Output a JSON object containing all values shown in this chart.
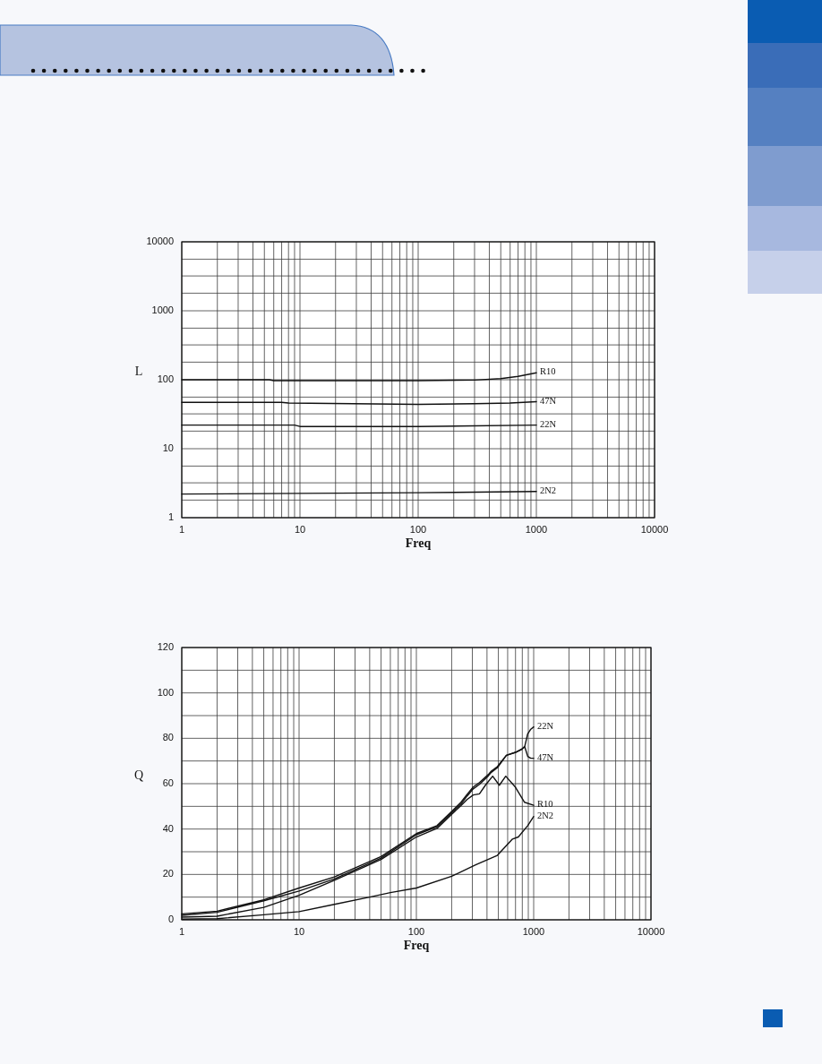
{
  "chart_data": [
    {
      "type": "line",
      "xlabel": "Freq",
      "ylabel": "L",
      "log": "xy",
      "xlim": [
        1,
        10000
      ],
      "ylim": [
        1,
        10000
      ],
      "xticks": [
        1,
        {
          "value": 2,
          "label": null
        },
        {
          "value": 3,
          "label": null
        },
        {
          "value": 4,
          "label": null
        },
        {
          "value": 5,
          "label": null
        },
        {
          "value": 6,
          "label": null
        },
        {
          "value": 7,
          "label": null
        },
        {
          "value": 8,
          "label": null
        },
        {
          "value": 9,
          "label": null
        },
        10,
        {
          "value": 20,
          "label": null
        },
        {
          "value": 30,
          "label": null
        },
        {
          "value": 40,
          "label": null
        },
        {
          "value": 50,
          "label": null
        },
        {
          "value": 60,
          "label": null
        },
        {
          "value": 70,
          "label": null
        },
        {
          "value": 80,
          "label": null
        },
        {
          "value": 90,
          "label": null
        },
        100,
        {
          "value": 200,
          "label": null
        },
        {
          "value": 300,
          "label": null
        },
        {
          "value": 400,
          "label": null
        },
        {
          "value": 500,
          "label": null
        },
        {
          "value": 600,
          "label": null
        },
        {
          "value": 700,
          "label": null
        },
        {
          "value": 800,
          "label": null
        },
        {
          "value": 900,
          "label": null
        },
        1000,
        {
          "value": 2000,
          "label": null
        },
        {
          "value": 3000,
          "label": null
        },
        {
          "value": 4000,
          "label": null
        },
        {
          "value": 5000,
          "label": null
        },
        {
          "value": 6000,
          "label": null
        },
        {
          "value": 7000,
          "label": null
        },
        {
          "value": 8000,
          "label": null
        },
        {
          "value": 9000,
          "label": null
        },
        10000
      ],
      "yticks": [
        1,
        {
          "value": 1.8,
          "label": null
        },
        {
          "value": 3.2,
          "label": null
        },
        {
          "value": 5.6,
          "label": null
        },
        10,
        {
          "value": 18,
          "label": null
        },
        {
          "value": 32,
          "label": null
        },
        {
          "value": 56,
          "label": null
        },
        100,
        {
          "value": 180,
          "label": null
        },
        {
          "value": 320,
          "label": null
        },
        {
          "value": 560,
          "label": null
        },
        1000,
        {
          "value": 1800,
          "label": null
        },
        {
          "value": 3200,
          "label": null
        },
        {
          "value": 5600,
          "label": null
        },
        10000
      ],
      "grid": true,
      "series": [
        {
          "name": "R10",
          "color": "#111111",
          "x": [
            1,
            5.5,
            6,
            100,
            300,
            500,
            700,
            1000
          ],
          "values": [
            100,
            100,
            97,
            97,
            99,
            104,
            112,
            126
          ]
        },
        {
          "name": "47N",
          "color": "#111111",
          "x": [
            1,
            7,
            8,
            100,
            300,
            600,
            1000
          ],
          "values": [
            47,
            47,
            46,
            44,
            45,
            46,
            48
          ]
        },
        {
          "name": "22N",
          "color": "#111111",
          "x": [
            1,
            9,
            10,
            100,
            1000
          ],
          "values": [
            22,
            22,
            21,
            21,
            22
          ]
        },
        {
          "name": "2N2",
          "color": "#111111",
          "x": [
            1,
            10,
            100,
            1000
          ],
          "values": [
            2.2,
            2.25,
            2.3,
            2.4
          ]
        }
      ]
    },
    {
      "type": "line",
      "xlabel": "Freq",
      "ylabel": "Q",
      "log": "x",
      "xlim": [
        1,
        10000
      ],
      "ylim": [
        0,
        120
      ],
      "xticks": [
        1,
        {
          "value": 2,
          "label": null
        },
        {
          "value": 3,
          "label": null
        },
        {
          "value": 4,
          "label": null
        },
        {
          "value": 5,
          "label": null
        },
        {
          "value": 6,
          "label": null
        },
        {
          "value": 7,
          "label": null
        },
        {
          "value": 8,
          "label": null
        },
        {
          "value": 9,
          "label": null
        },
        10,
        {
          "value": 20,
          "label": null
        },
        {
          "value": 30,
          "label": null
        },
        {
          "value": 40,
          "label": null
        },
        {
          "value": 50,
          "label": null
        },
        {
          "value": 60,
          "label": null
        },
        {
          "value": 70,
          "label": null
        },
        {
          "value": 80,
          "label": null
        },
        {
          "value": 90,
          "label": null
        },
        100,
        {
          "value": 200,
          "label": null
        },
        {
          "value": 300,
          "label": null
        },
        {
          "value": 400,
          "label": null
        },
        {
          "value": 500,
          "label": null
        },
        {
          "value": 600,
          "label": null
        },
        {
          "value": 700,
          "label": null
        },
        {
          "value": 800,
          "label": null
        },
        {
          "value": 900,
          "label": null
        },
        1000,
        {
          "value": 2000,
          "label": null
        },
        {
          "value": 3000,
          "label": null
        },
        {
          "value": 4000,
          "label": null
        },
        {
          "value": 5000,
          "label": null
        },
        {
          "value": 6000,
          "label": null
        },
        {
          "value": 7000,
          "label": null
        },
        {
          "value": 8000,
          "label": null
        },
        {
          "value": 9000,
          "label": null
        },
        10000
      ],
      "yticks": [
        0,
        {
          "value": 10,
          "label": null
        },
        20,
        {
          "value": 30,
          "label": null
        },
        40,
        {
          "value": 50,
          "label": null
        },
        60,
        {
          "value": 70,
          "label": null
        },
        80,
        {
          "value": 90,
          "label": null
        },
        100,
        {
          "value": 110,
          "label": null
        },
        120
      ],
      "grid": true,
      "series": [
        {
          "name": "22N",
          "color": "#111111",
          "x": [
            1,
            2,
            5,
            10,
            20,
            50,
            100,
            150,
            200,
            240,
            270,
            305,
            345,
            410,
            435,
            490,
            585,
            700,
            790,
            840,
            890,
            945,
            1000
          ],
          "values": [
            2.6,
            3.8,
            8.8,
            14,
            18.9,
            27.9,
            38,
            41.5,
            47.8,
            51.8,
            55.2,
            58.5,
            60.5,
            64,
            65.5,
            67.5,
            72.5,
            73.8,
            75.2,
            76.5,
            82,
            84,
            85
          ]
        },
        {
          "name": "47N",
          "color": "#111111",
          "x": [
            1,
            2,
            5,
            10,
            20,
            50,
            100,
            150,
            200,
            240,
            270,
            305,
            345,
            410,
            435,
            490,
            585,
            700,
            790,
            840,
            890,
            945,
            1000
          ],
          "values": [
            2,
            3.3,
            8.4,
            12.7,
            18,
            27.2,
            37.5,
            41,
            47.2,
            51,
            54.5,
            57.7,
            59.7,
            63.4,
            65,
            67,
            72.5,
            73.8,
            75.1,
            76.2,
            72,
            71.2,
            71.2
          ]
        },
        {
          "name": "R10",
          "color": "#111111",
          "x": [
            1,
            2,
            5,
            10,
            20,
            50,
            100,
            150,
            200,
            240,
            270,
            305,
            345,
            390,
            447,
            510,
            578,
            700,
            836,
            1000
          ],
          "values": [
            1.2,
            1.6,
            5.5,
            10.8,
            17.4,
            26.6,
            36.5,
            40.3,
            46.5,
            50.3,
            53,
            55,
            55.5,
            59.5,
            63.3,
            59.3,
            63.3,
            58.4,
            51.8,
            50.5
          ]
        },
        {
          "name": "2N2",
          "color": "#111111",
          "x": [
            1,
            2,
            5,
            10,
            20,
            40,
            60,
            100,
            200,
            320,
            490,
            660,
            740,
            890,
            1000
          ],
          "values": [
            0.3,
            0.5,
            2.2,
            3.6,
            6.8,
            10,
            12,
            14,
            19.2,
            24.2,
            28.4,
            35.6,
            36.5,
            41.5,
            45.5
          ]
        }
      ]
    }
  ]
}
